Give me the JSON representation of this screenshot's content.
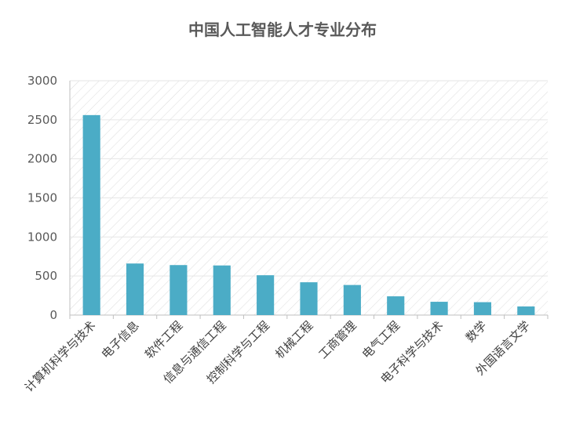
{
  "chart_data": {
    "type": "bar",
    "title": "中国人工智能人才专业分布",
    "xlabel": "",
    "ylabel": "",
    "ylim": [
      0,
      3000
    ],
    "yticks": [
      0,
      500,
      1000,
      1500,
      2000,
      2500,
      3000
    ],
    "ytick_labels": [
      "0",
      "500",
      "1000",
      "1500",
      "2000",
      "2500",
      "3000"
    ],
    "grid": true,
    "legend": "none",
    "categories": [
      "计算机科学与技术",
      "电子信息",
      "软件工程",
      "信息与通信工程",
      "控制科学与工程",
      "机械工程",
      "工商管理",
      "电气工程",
      "电子科学与技术",
      "数学",
      "外国语言文学"
    ],
    "values": [
      2560,
      660,
      640,
      635,
      510,
      420,
      385,
      240,
      170,
      165,
      110
    ],
    "bar_color": "#4bacc6",
    "title_color": "#595959"
  }
}
